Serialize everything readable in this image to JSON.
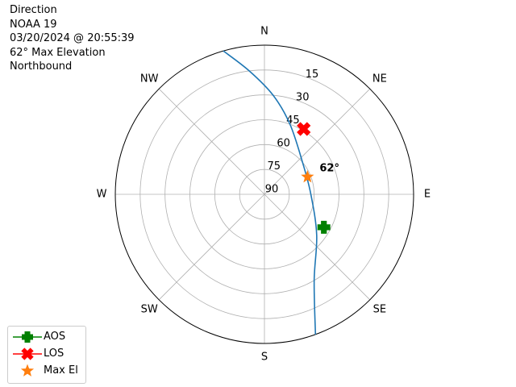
{
  "info": {
    "line1": "Direction",
    "line2": "NOAA 19",
    "line3": "03/20/2024 @ 20:55:39",
    "line4": "62° Max Elevation",
    "line5": "Northbound"
  },
  "chart_data": {
    "type": "polar",
    "directions": [
      "N",
      "NE",
      "E",
      "SE",
      "S",
      "SW",
      "W",
      "NW"
    ],
    "elevation_ticks": [
      "15",
      "30",
      "45",
      "60",
      "75",
      "90"
    ],
    "rlim": [
      90,
      0
    ],
    "grid": true,
    "legend_position": "lower-left",
    "track": {
      "color": "#1f77b4",
      "points": [
        {
          "az": 344,
          "el": 0
        },
        {
          "az": 353,
          "el": 15
        },
        {
          "az": 5,
          "el": 30
        },
        {
          "az": 20,
          "el": 45
        },
        {
          "az": 50,
          "el": 60
        },
        {
          "az": 90,
          "el": 62
        },
        {
          "az": 128,
          "el": 50
        },
        {
          "az": 150,
          "el": 30
        },
        {
          "az": 160,
          "el": 0
        }
      ]
    },
    "markers": {
      "aos": {
        "label": "AOS",
        "az": 119,
        "el": 49,
        "color": "#008000"
      },
      "los": {
        "label": "LOS",
        "az": 31,
        "el": 44,
        "color": "#ff0000"
      },
      "max_el": {
        "label": "Max El",
        "az": 68,
        "el": 62,
        "color": "#ff7f0e",
        "annotation": "62°"
      }
    }
  }
}
